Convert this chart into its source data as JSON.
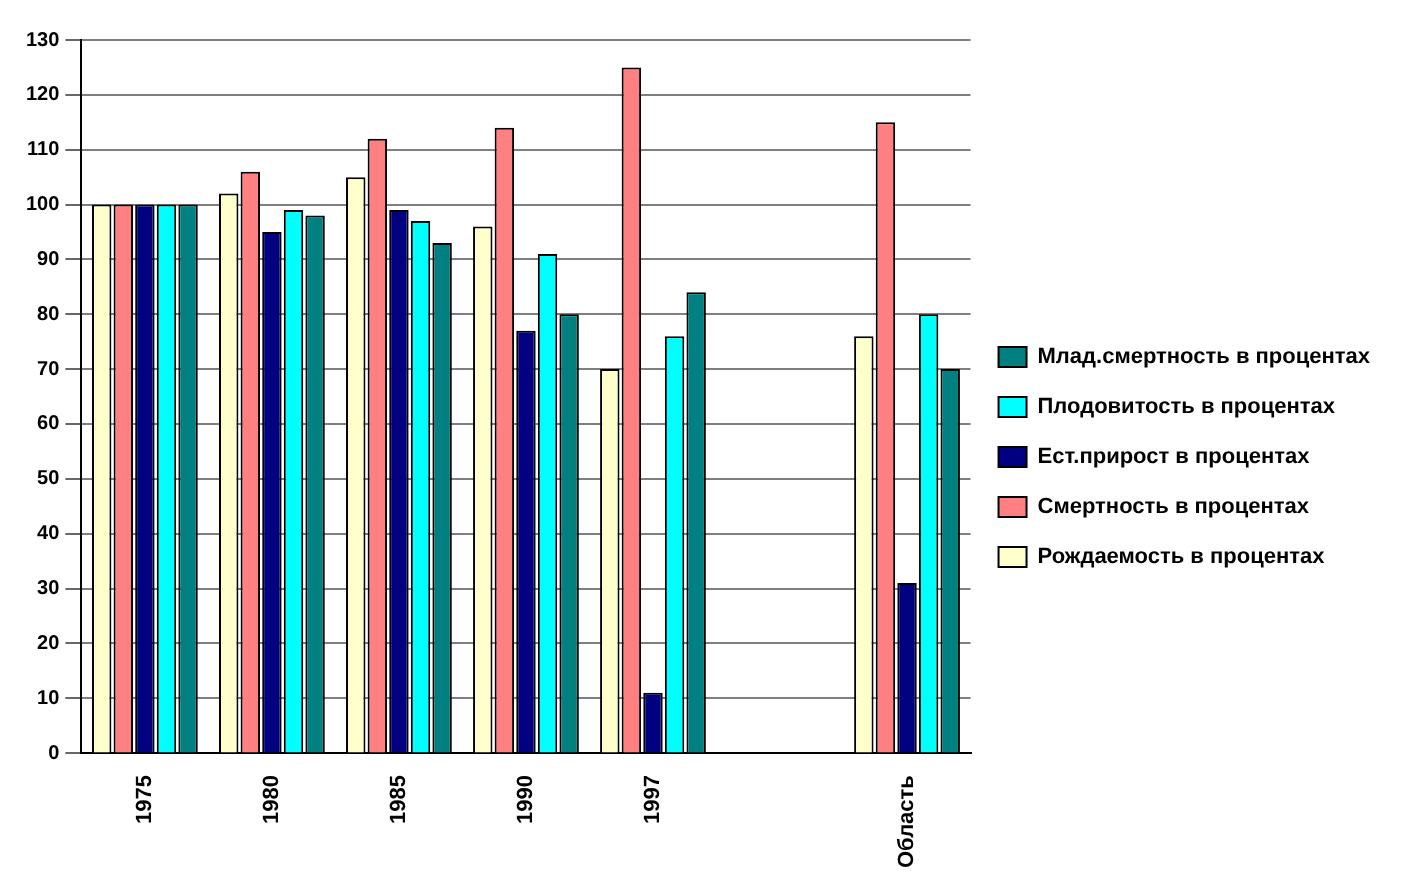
{
  "chart_data": {
    "type": "bar",
    "categories": [
      "1975",
      "1980",
      "1985",
      "1990",
      "1997",
      null,
      "Область"
    ],
    "series": [
      {
        "name": "Рождаемость в процентах",
        "color": "#ffffcc",
        "values": [
          100,
          102,
          105,
          96,
          70,
          null,
          76
        ]
      },
      {
        "name": "Смертность в процентах",
        "color": "#ff8080",
        "values": [
          100,
          106,
          112,
          114,
          125,
          null,
          115
        ]
      },
      {
        "name": "Ест.прирост в процентах",
        "color": "#000080",
        "values": [
          100,
          95,
          99,
          77,
          11,
          null,
          31
        ]
      },
      {
        "name": "Плодовитость в процентах",
        "color": "#00ffff",
        "values": [
          100,
          99,
          97,
          91,
          76,
          null,
          80
        ]
      },
      {
        "name": "Млад.смертность в процентах",
        "color": "#008080",
        "values": [
          100,
          98,
          93,
          80,
          84,
          null,
          70
        ]
      }
    ],
    "ylim": [
      0,
      130
    ],
    "yticks": [
      0,
      10,
      20,
      30,
      40,
      50,
      60,
      70,
      80,
      90,
      100,
      110,
      120,
      130
    ],
    "grid": "y",
    "legend": "right"
  }
}
